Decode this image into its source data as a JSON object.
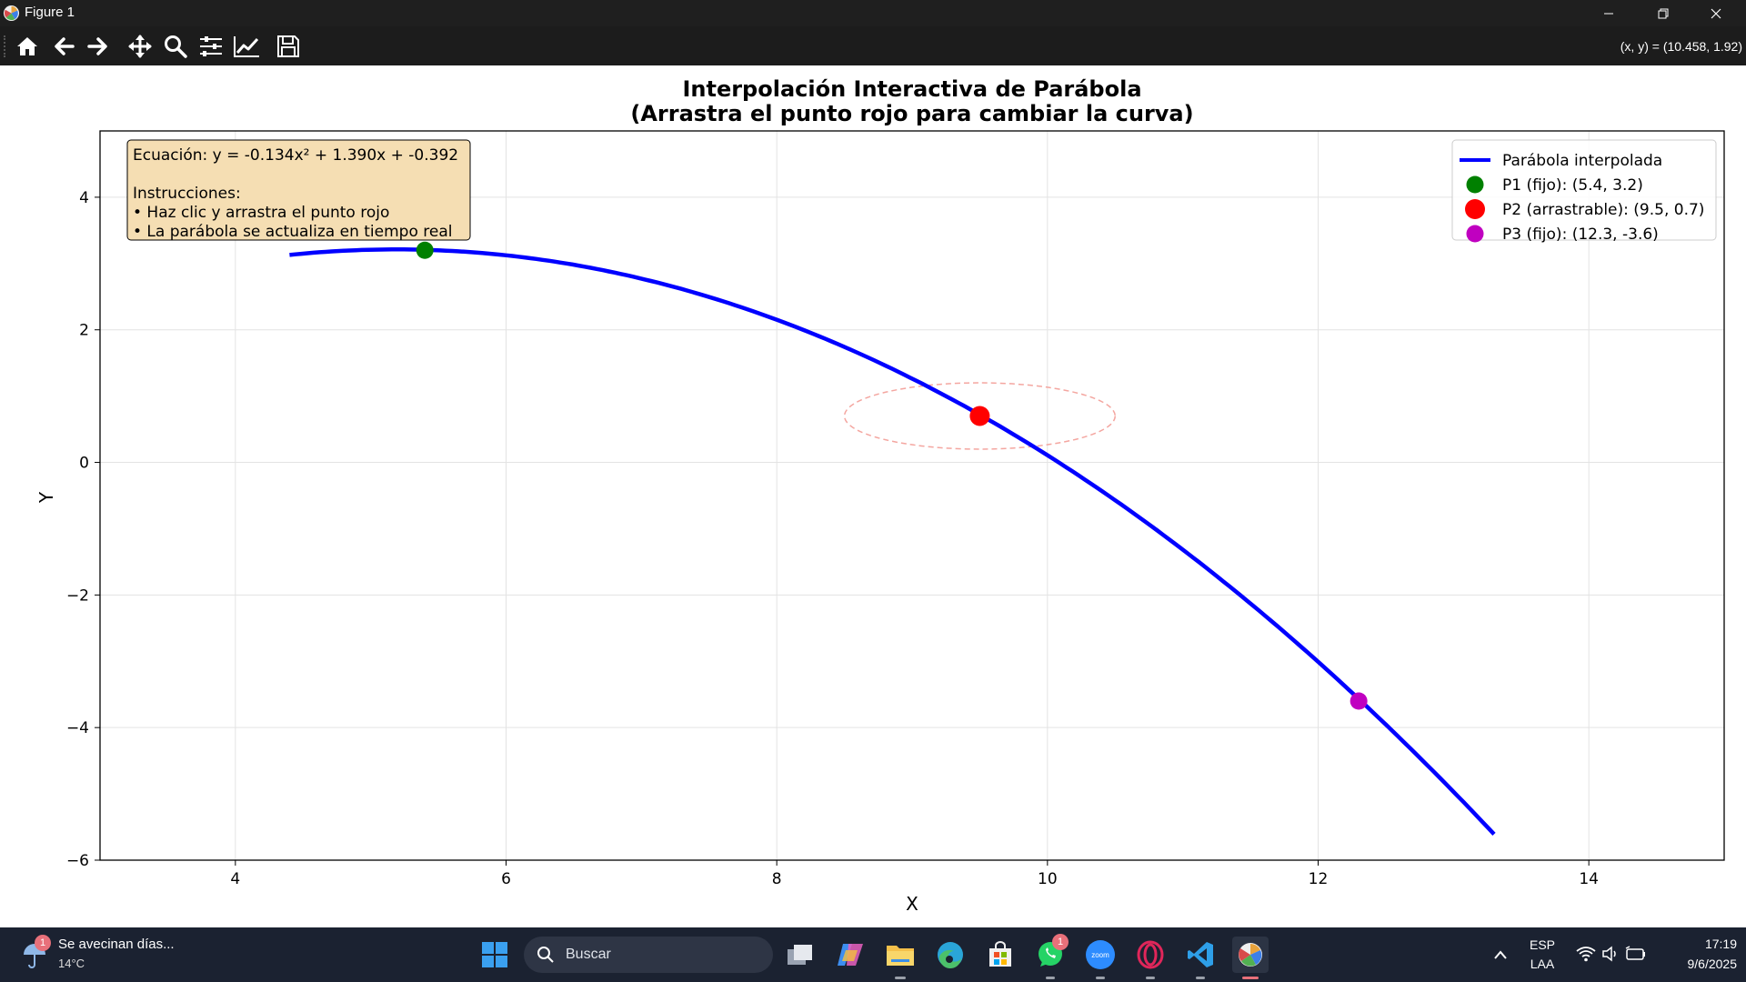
{
  "window": {
    "title": "Figure 1",
    "coords_readout": "(x, y) = (10.458, 1.92)"
  },
  "toolbar": {
    "buttons": [
      "home-icon",
      "back-icon",
      "forward-icon",
      "pan-icon",
      "zoom-icon",
      "configure-subplots-icon",
      "edit-axis-icon",
      "save-icon"
    ]
  },
  "chart_data": {
    "type": "line",
    "title": "Interpolación Interactiva de Parábola",
    "subtitle": "(Arrastra el punto rojo para cambiar la curva)",
    "xlabel": "X",
    "ylabel": "Y",
    "xlim": [
      3.0,
      15.0
    ],
    "ylim": [
      -6.0,
      5.0
    ],
    "xticks": [
      4,
      6,
      8,
      10,
      12,
      14
    ],
    "yticks": [
      -6,
      -4,
      -2,
      0,
      2,
      4
    ],
    "x_tick_labels": [
      "4",
      "6",
      "8",
      "10",
      "12",
      "14"
    ],
    "y_tick_labels": [
      "−6",
      "−4",
      "−2",
      "0",
      "2",
      "4"
    ],
    "grid": true,
    "curve": {
      "name": "Parábola interpolada",
      "color": "#0000ff",
      "coefficients": {
        "a": -0.134,
        "b": 1.39,
        "c": -0.392
      },
      "x_range": [
        4.4,
        13.3
      ]
    },
    "points": [
      {
        "name": "P1 (fijo): (5.4, 3.2)",
        "x": 5.4,
        "y": 3.2,
        "color": "#008000"
      },
      {
        "name": "P2 (arrastrable): (9.5, 0.7)",
        "x": 9.5,
        "y": 0.7,
        "color": "#ff0000"
      },
      {
        "name": "P3 (fijo): (12.3, -3.6)",
        "x": 12.3,
        "y": -3.6,
        "color": "#c000c0"
      }
    ],
    "highlight_ellipse": {
      "cx": 9.5,
      "cy": 0.7,
      "rx": 1.0,
      "ry": 0.5,
      "color": "#f4a6a0"
    },
    "legend_position": "top-right",
    "info_box": {
      "lines": [
        "Ecuación: y = -0.134x² + 1.390x + -0.392",
        "",
        "Instrucciones:",
        "• Haz clic y arrastra el punto rojo",
        "• La parábola se actualiza en tiempo real"
      ],
      "background": "#f5deb3"
    }
  },
  "taskbar": {
    "weather_text": "Se avecinan días...",
    "weather_temp": "14°C",
    "weather_badge": "1",
    "search_placeholder": "Buscar",
    "apps": [
      "task-view-icon",
      "copilot-icon",
      "file-explorer-icon",
      "edge-icon",
      "store-icon",
      "whatsapp-icon",
      "zoom-icon",
      "opera-icon",
      "vscode-icon",
      "python-figure-icon"
    ],
    "whatsapp_badge": "1",
    "zoom_label": "zoom",
    "lang_top": "ESP",
    "lang_bottom": "LAA",
    "time": "17:19",
    "date": "9/6/2025"
  }
}
